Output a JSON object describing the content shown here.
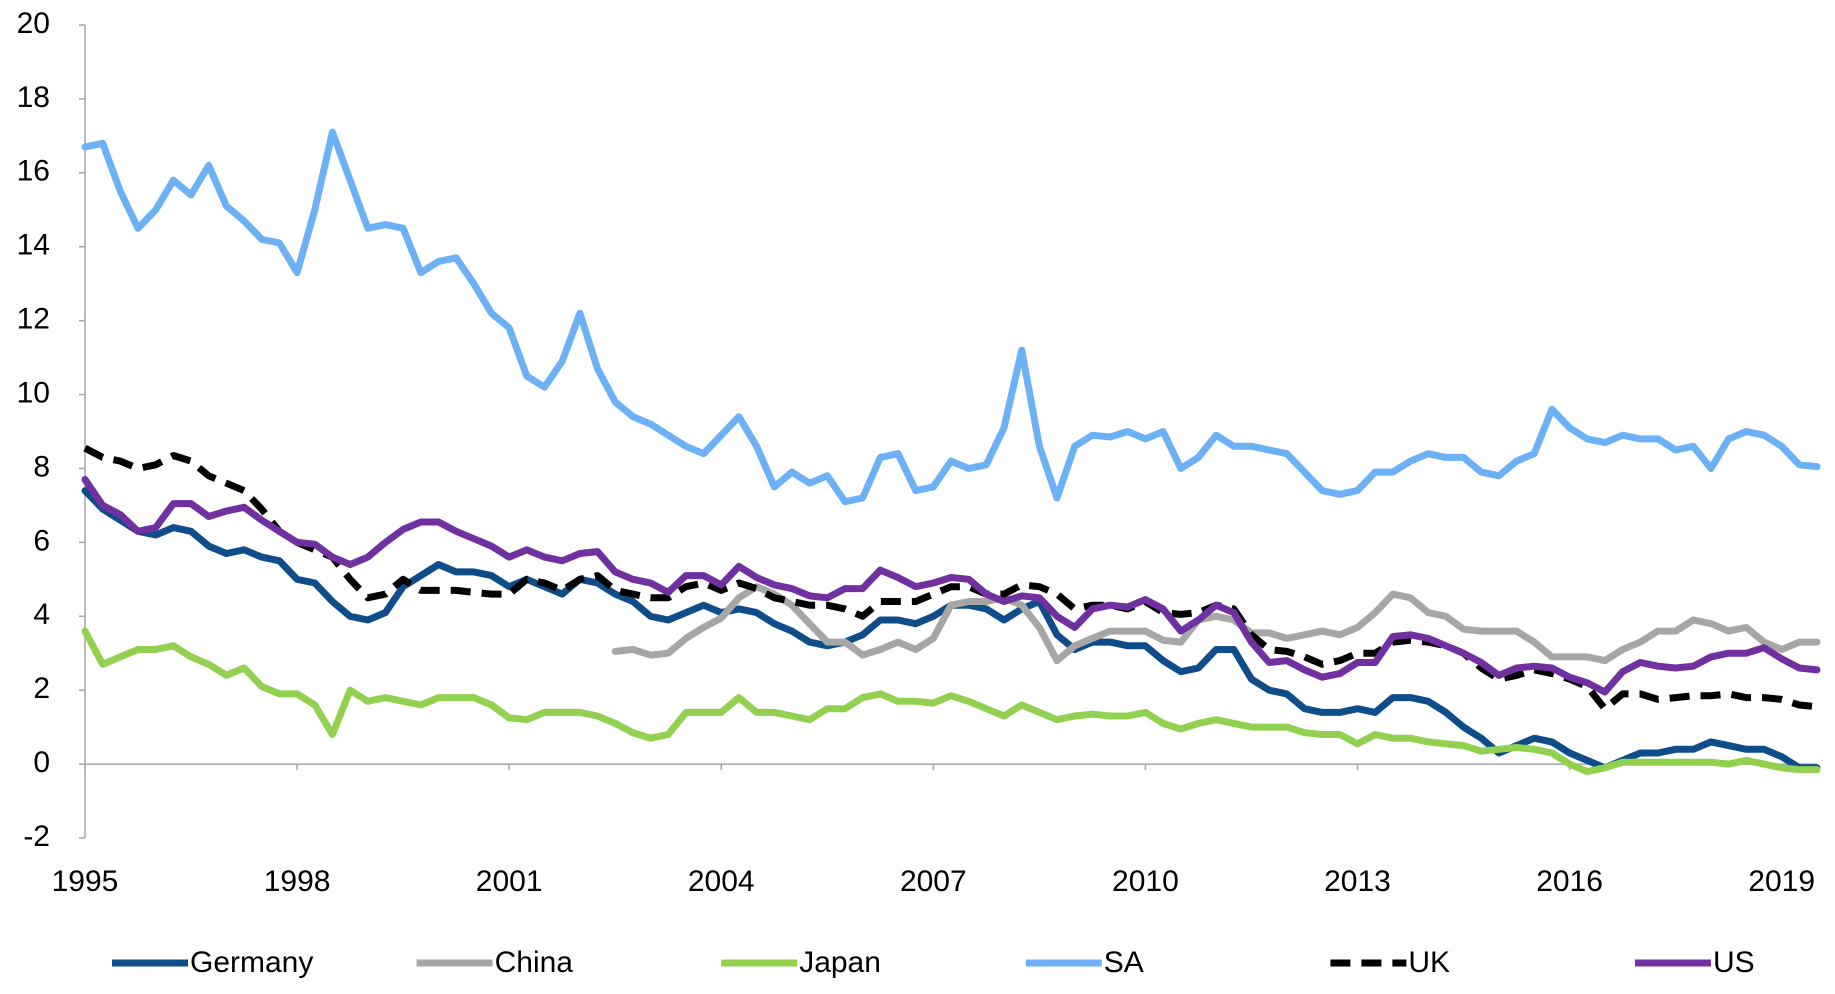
{
  "chart_data": {
    "type": "line",
    "x": [
      1995,
      1995.25,
      1995.5,
      1995.75,
      1996,
      1996.25,
      1996.5,
      1996.75,
      1997,
      1997.25,
      1997.5,
      1997.75,
      1998,
      1998.25,
      1998.5,
      1998.75,
      1999,
      1999.25,
      1999.5,
      1999.75,
      2000,
      2000.25,
      2000.5,
      2000.75,
      2001,
      2001.25,
      2001.5,
      2001.75,
      2002,
      2002.25,
      2002.5,
      2002.75,
      2003,
      2003.25,
      2003.5,
      2003.75,
      2004,
      2004.25,
      2004.5,
      2004.75,
      2005,
      2005.25,
      2005.5,
      2005.75,
      2006,
      2006.25,
      2006.5,
      2006.75,
      2007,
      2007.25,
      2007.5,
      2007.75,
      2008,
      2008.25,
      2008.5,
      2008.75,
      2009,
      2009.25,
      2009.5,
      2009.75,
      2010,
      2010.25,
      2010.5,
      2010.75,
      2011,
      2011.25,
      2011.5,
      2011.75,
      2012,
      2012.25,
      2012.5,
      2012.75,
      2013,
      2013.25,
      2013.5,
      2013.75,
      2014,
      2014.25,
      2014.5,
      2014.75,
      2015,
      2015.25,
      2015.5,
      2015.75,
      2016,
      2016.25,
      2016.5,
      2016.75,
      2017,
      2017.25,
      2017.5,
      2017.75,
      2018,
      2018.25,
      2018.5,
      2018.75,
      2019,
      2019.25,
      2019.5
    ],
    "xlim": [
      1995,
      2019.5
    ],
    "xticks": [
      1995,
      1998,
      2001,
      2004,
      2007,
      2010,
      2013,
      2016,
      2019
    ],
    "ylim": [
      -2,
      20
    ],
    "yticks": [
      -2,
      0,
      2,
      4,
      6,
      8,
      10,
      12,
      14,
      16,
      18,
      20
    ],
    "legend": "bottom",
    "series": [
      {
        "name": "Germany",
        "color": "#0e4c8a",
        "values": [
          7.4,
          6.9,
          6.6,
          6.3,
          6.2,
          6.4,
          6.3,
          5.9,
          5.7,
          5.8,
          5.6,
          5.5,
          5.0,
          4.9,
          4.4,
          4.0,
          3.9,
          4.1,
          4.8,
          5.1,
          5.4,
          5.2,
          5.2,
          5.1,
          4.8,
          5.0,
          4.8,
          4.6,
          5.0,
          4.9,
          4.6,
          4.4,
          4.0,
          3.9,
          4.1,
          4.3,
          4.1,
          4.2,
          4.1,
          3.8,
          3.6,
          3.3,
          3.2,
          3.3,
          3.5,
          3.9,
          3.9,
          3.8,
          4.0,
          4.3,
          4.3,
          4.2,
          3.9,
          4.2,
          4.4,
          3.5,
          3.1,
          3.3,
          3.3,
          3.2,
          3.2,
          2.8,
          2.5,
          2.6,
          3.1,
          3.1,
          2.3,
          2.0,
          1.9,
          1.5,
          1.4,
          1.4,
          1.5,
          1.4,
          1.8,
          1.8,
          1.7,
          1.4,
          1.0,
          0.7,
          0.3,
          0.5,
          0.7,
          0.6,
          0.3,
          0.1,
          -0.1,
          0.1,
          0.3,
          0.3,
          0.4,
          0.4,
          0.6,
          0.5,
          0.4,
          0.4,
          0.2,
          -0.1,
          -0.1
        ]
      },
      {
        "name": "China",
        "color": "#a6a6a6",
        "values": [
          null,
          null,
          null,
          null,
          null,
          null,
          null,
          null,
          null,
          null,
          null,
          null,
          null,
          null,
          null,
          null,
          null,
          null,
          null,
          null,
          null,
          null,
          null,
          null,
          null,
          null,
          null,
          null,
          null,
          null,
          3.05,
          3.1,
          2.95,
          3.0,
          3.4,
          3.7,
          3.95,
          4.5,
          4.8,
          4.6,
          4.3,
          3.8,
          3.3,
          3.3,
          2.95,
          3.1,
          3.3,
          3.1,
          3.4,
          4.3,
          4.4,
          4.4,
          4.5,
          4.3,
          3.7,
          2.8,
          3.2,
          3.4,
          3.6,
          3.6,
          3.6,
          3.35,
          3.3,
          3.9,
          4.0,
          3.9,
          3.55,
          3.55,
          3.4,
          3.5,
          3.6,
          3.5,
          3.7,
          4.1,
          4.6,
          4.5,
          4.1,
          4.0,
          3.65,
          3.6,
          3.6,
          3.6,
          3.3,
          2.9,
          2.9,
          2.9,
          2.8,
          3.1,
          3.3,
          3.6,
          3.6,
          3.9,
          3.8,
          3.6,
          3.7,
          3.3,
          3.1,
          3.3,
          3.3
        ]
      },
      {
        "name": "Japan",
        "color": "#92d050",
        "values": [
          3.6,
          2.7,
          2.9,
          3.1,
          3.1,
          3.2,
          2.9,
          2.7,
          2.4,
          2.6,
          2.1,
          1.9,
          1.9,
          1.6,
          0.8,
          2.0,
          1.7,
          1.8,
          1.7,
          1.6,
          1.8,
          1.8,
          1.8,
          1.6,
          1.25,
          1.2,
          1.4,
          1.4,
          1.4,
          1.3,
          1.1,
          0.85,
          0.7,
          0.8,
          1.4,
          1.4,
          1.4,
          1.8,
          1.4,
          1.4,
          1.3,
          1.2,
          1.5,
          1.5,
          1.8,
          1.9,
          1.7,
          1.7,
          1.65,
          1.85,
          1.7,
          1.5,
          1.3,
          1.6,
          1.4,
          1.2,
          1.3,
          1.35,
          1.3,
          1.3,
          1.4,
          1.1,
          0.95,
          1.1,
          1.2,
          1.1,
          1.0,
          1.0,
          1.0,
          0.85,
          0.8,
          0.8,
          0.55,
          0.8,
          0.7,
          0.7,
          0.6,
          0.55,
          0.5,
          0.35,
          0.4,
          0.45,
          0.4,
          0.3,
          0.0,
          -0.2,
          -0.1,
          0.05,
          0.05,
          0.05,
          0.05,
          0.05,
          0.05,
          0.0,
          0.1,
          0.0,
          -0.1,
          -0.15,
          -0.15
        ]
      },
      {
        "name": "SA",
        "color": "#6cb1f6",
        "values": [
          16.7,
          16.8,
          15.5,
          14.5,
          15.0,
          15.8,
          15.4,
          16.2,
          15.1,
          14.7,
          14.2,
          14.1,
          13.3,
          15.0,
          17.1,
          15.8,
          14.5,
          14.6,
          14.5,
          13.3,
          13.6,
          13.7,
          13.0,
          12.2,
          11.8,
          10.5,
          10.2,
          10.9,
          12.2,
          10.7,
          9.8,
          9.4,
          9.2,
          8.9,
          8.6,
          8.4,
          8.9,
          9.4,
          8.6,
          7.5,
          7.9,
          7.6,
          7.8,
          7.1,
          7.2,
          8.3,
          8.4,
          7.4,
          7.5,
          8.2,
          8.0,
          8.1,
          9.1,
          11.2,
          8.6,
          7.2,
          8.6,
          8.9,
          8.85,
          9.0,
          8.8,
          9.0,
          8.0,
          8.3,
          8.9,
          8.6,
          8.6,
          8.5,
          8.4,
          7.9,
          7.4,
          7.3,
          7.4,
          7.9,
          7.9,
          8.2,
          8.4,
          8.3,
          8.3,
          7.9,
          7.8,
          8.2,
          8.4,
          9.6,
          9.1,
          8.8,
          8.7,
          8.9,
          8.8,
          8.8,
          8.5,
          8.6,
          8.0,
          8.8,
          9.0,
          8.9,
          8.6,
          8.1,
          8.05
        ]
      },
      {
        "name": "UK",
        "color": "#000000",
        "dashed": true,
        "values": [
          8.55,
          8.3,
          8.2,
          8.0,
          8.1,
          8.35,
          8.2,
          7.8,
          7.6,
          7.4,
          6.9,
          6.3,
          6.0,
          5.8,
          5.6,
          5.0,
          4.5,
          4.6,
          5.0,
          4.7,
          4.7,
          4.7,
          4.65,
          4.6,
          4.6,
          5.0,
          4.9,
          4.7,
          5.0,
          5.1,
          4.7,
          4.6,
          4.5,
          4.5,
          4.8,
          4.9,
          4.7,
          4.9,
          4.75,
          4.5,
          4.4,
          4.3,
          4.3,
          4.2,
          4.0,
          4.4,
          4.4,
          4.4,
          4.6,
          4.8,
          4.8,
          4.6,
          4.6,
          4.85,
          4.8,
          4.6,
          4.2,
          4.3,
          4.3,
          4.2,
          4.4,
          4.1,
          4.05,
          4.1,
          4.3,
          4.2,
          3.5,
          3.1,
          3.05,
          2.9,
          2.7,
          2.8,
          3.0,
          3.0,
          3.3,
          3.35,
          3.3,
          3.2,
          3.0,
          2.6,
          2.3,
          2.4,
          2.55,
          2.45,
          2.3,
          2.1,
          1.5,
          1.9,
          1.9,
          1.75,
          1.8,
          1.85,
          1.85,
          1.9,
          1.8,
          1.8,
          1.75,
          1.6,
          1.55
        ]
      },
      {
        "name": "US",
        "color": "#7030a0",
        "values": [
          7.7,
          7.0,
          6.75,
          6.3,
          6.4,
          7.05,
          7.05,
          6.7,
          6.85,
          6.95,
          6.6,
          6.3,
          6.0,
          5.95,
          5.6,
          5.4,
          5.6,
          6.0,
          6.35,
          6.55,
          6.55,
          6.3,
          6.1,
          5.9,
          5.6,
          5.8,
          5.6,
          5.5,
          5.7,
          5.75,
          5.2,
          5.0,
          4.9,
          4.65,
          5.1,
          5.1,
          4.85,
          5.35,
          5.05,
          4.85,
          4.75,
          4.55,
          4.5,
          4.75,
          4.75,
          5.25,
          5.05,
          4.8,
          4.9,
          5.05,
          5.0,
          4.6,
          4.4,
          4.55,
          4.5,
          4.0,
          3.7,
          4.2,
          4.3,
          4.25,
          4.45,
          4.2,
          3.6,
          3.9,
          4.3,
          4.1,
          3.3,
          2.75,
          2.8,
          2.55,
          2.35,
          2.45,
          2.75,
          2.75,
          3.45,
          3.5,
          3.4,
          3.2,
          3.0,
          2.75,
          2.4,
          2.6,
          2.65,
          2.6,
          2.35,
          2.2,
          1.95,
          2.5,
          2.75,
          2.65,
          2.6,
          2.65,
          2.9,
          3.0,
          3.0,
          3.15,
          2.85,
          2.6,
          2.55
        ]
      }
    ]
  }
}
